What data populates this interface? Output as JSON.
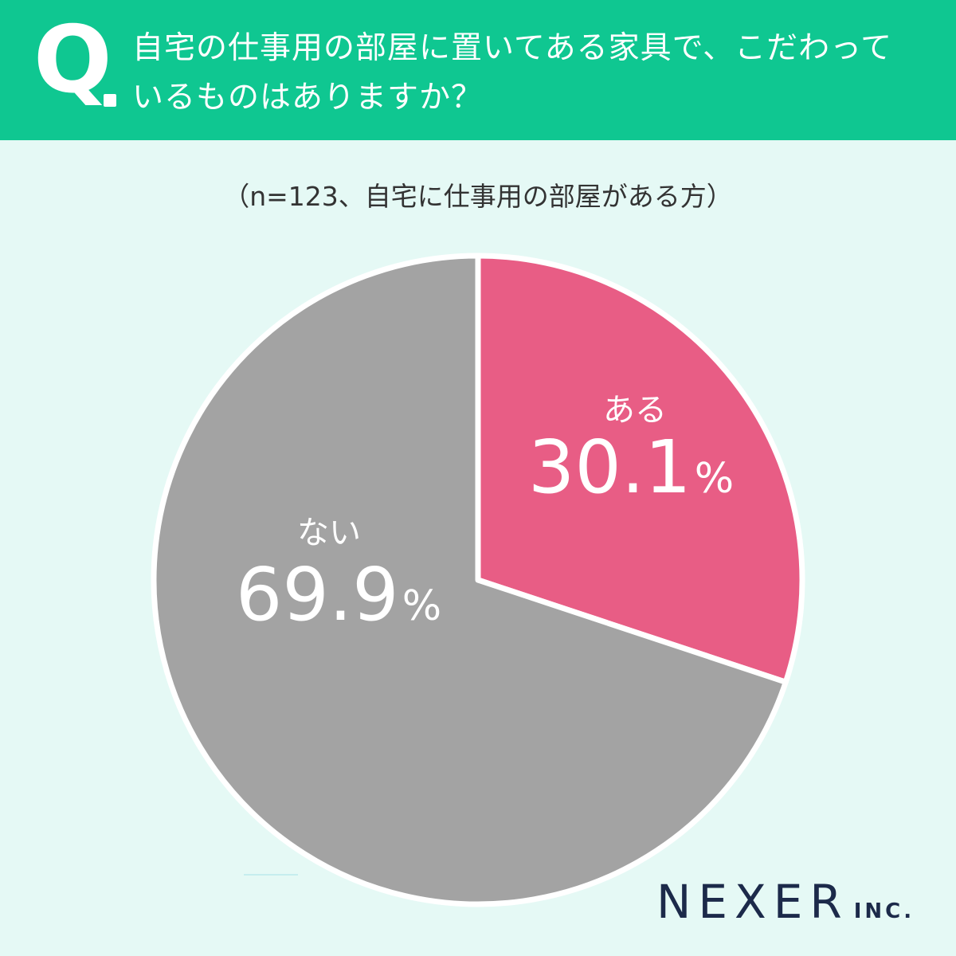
{
  "header": {
    "q_mark": "Q",
    "question_line1": "自宅の仕事用の部屋に置いてある家具で、こだわって",
    "question_line2": "いるものはありますか？",
    "bg_color": "#0fc791"
  },
  "subtitle": "（n=123、自宅に仕事用の部屋がある方）",
  "chart_data": {
    "type": "pie",
    "start_angle_deg": 0,
    "direction": "clockwise",
    "slices": [
      {
        "label": "ある",
        "value": 30.1,
        "value_text": "30.1",
        "unit": "%",
        "color": "#e85d85"
      },
      {
        "label": "ない",
        "value": 69.9,
        "value_text": "69.9",
        "unit": "%",
        "color": "#a3a3a3"
      }
    ]
  },
  "logo": {
    "main": "NEXER",
    "sub": "INC."
  }
}
